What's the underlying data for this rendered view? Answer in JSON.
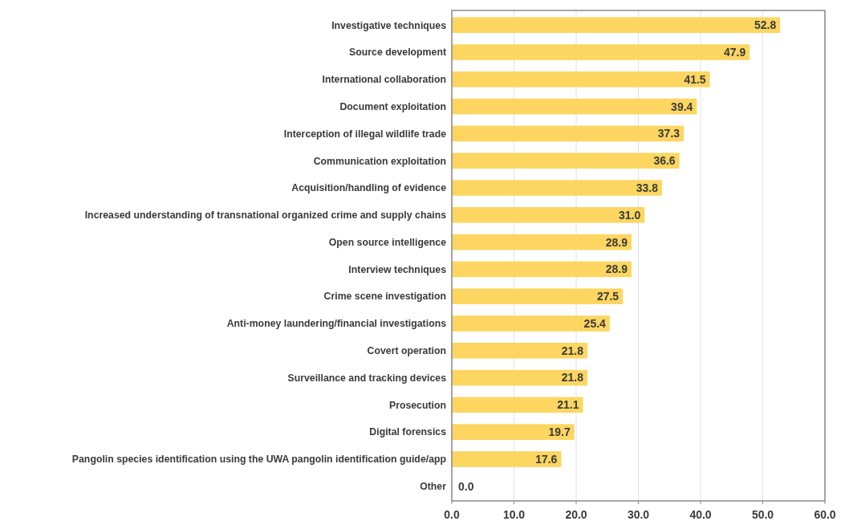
{
  "chart_data": {
    "type": "bar",
    "orientation": "horizontal",
    "categories": [
      "Investigative techniques",
      "Source development",
      "International collaboration",
      "Document exploitation",
      "Interception of illegal wildlife trade",
      "Communication exploitation",
      "Acquisition/handling of evidence",
      "Increased understanding of transnational organized crime and supply chains",
      "Open source intelligence",
      "Interview techniques",
      "Crime scene investigation",
      "Anti-money laundering/financial investigations",
      "Covert operation",
      "Surveillance and tracking devices",
      "Prosecution",
      "Digital forensics",
      "Pangolin species identification using the UWA pangolin identification guide/app",
      "Other"
    ],
    "values": [
      52.8,
      47.9,
      41.5,
      39.4,
      37.3,
      36.6,
      33.8,
      31.0,
      28.9,
      28.9,
      27.5,
      25.4,
      21.8,
      21.8,
      21.1,
      19.7,
      17.6,
      0.0
    ],
    "value_labels": [
      "52.8",
      "47.9",
      "41.5",
      "39.4",
      "37.3",
      "36.6",
      "33.8",
      "31.0",
      "28.9",
      "28.9",
      "27.5",
      "25.4",
      "21.8",
      "21.8",
      "21.1",
      "19.7",
      "17.6",
      "0.0"
    ],
    "color": "#fcd660",
    "xlim": [
      0,
      60
    ],
    "xticks": [
      {
        "value": 0,
        "label": "0.0"
      },
      {
        "value": 10,
        "label": "10.0"
      },
      {
        "value": 20,
        "label": "20.0"
      },
      {
        "value": 30,
        "label": "30.0"
      },
      {
        "value": 40,
        "label": "40.0"
      },
      {
        "value": 50,
        "label": "50.0"
      },
      {
        "value": 60,
        "label": "60.0"
      }
    ],
    "grid": "x"
  }
}
